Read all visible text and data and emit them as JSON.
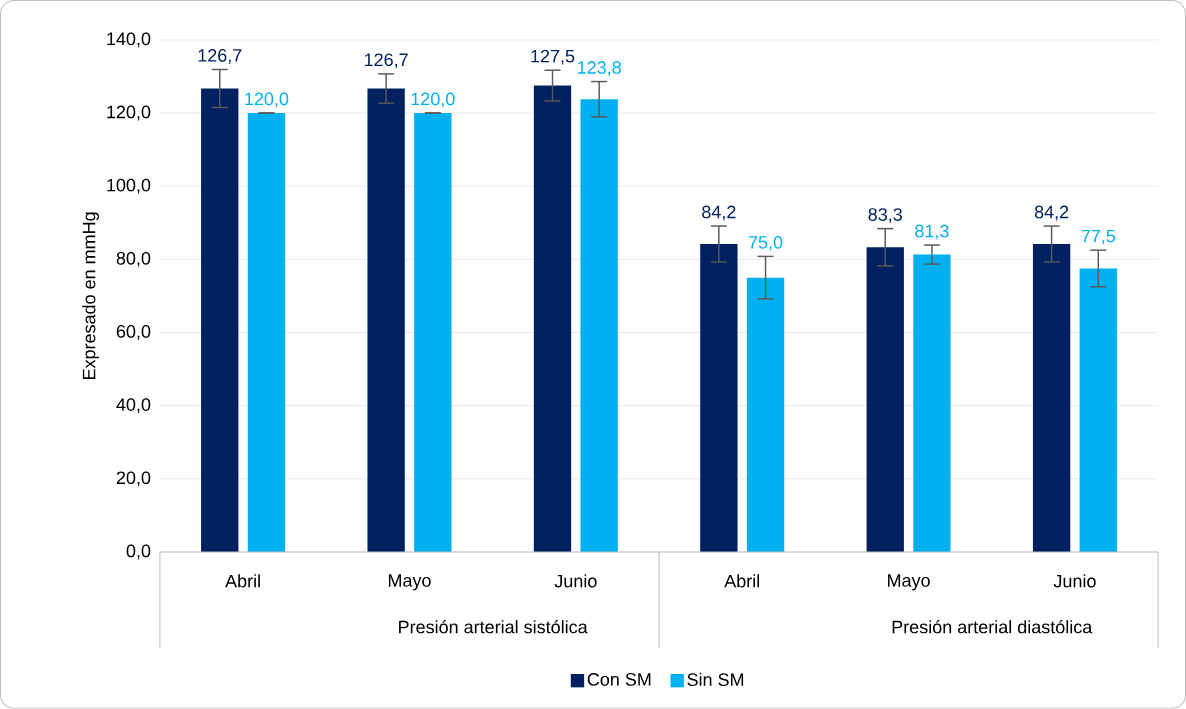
{
  "chart_data": {
    "type": "bar",
    "ylabel": "Expresado en mmHg",
    "categories": [
      "Abril",
      "Mayo",
      "Junio",
      "Abril",
      "Mayo",
      "Junio"
    ],
    "annotations": [
      "Presión arterial sistólica",
      "Presión arterial diastólica"
    ],
    "series": [
      {
        "name": "Con SM",
        "color": "#002060",
        "values": [
          126.7,
          126.7,
          127.5,
          84.2,
          83.3,
          84.2
        ],
        "errors": [
          5.2,
          4.0,
          4.2,
          4.9,
          5.1,
          4.9
        ],
        "value_labels": [
          "126,7",
          "126,7",
          "127,5",
          "84,2",
          "83,3",
          "84,2"
        ]
      },
      {
        "name": "Sin SM",
        "color": "#00b0f0",
        "values": [
          120.0,
          120.0,
          123.8,
          75.0,
          81.3,
          77.5
        ],
        "errors": [
          0,
          0,
          4.8,
          5.8,
          2.6,
          5.0
        ],
        "value_labels": [
          "120,0",
          "120,0",
          "123,8",
          "75,0",
          "81,3",
          "77,5"
        ]
      }
    ],
    "ylim": [
      0,
      140
    ],
    "yticks": [
      {
        "value": 0,
        "label": "0,0"
      },
      {
        "value": 20,
        "label": "20,0"
      },
      {
        "value": 40,
        "label": "40,0"
      },
      {
        "value": 60,
        "label": "60,0"
      },
      {
        "value": 80,
        "label": "80,0"
      },
      {
        "value": 100,
        "label": "100,0"
      },
      {
        "value": 120,
        "label": "120,0"
      },
      {
        "value": 140,
        "label": "140,0"
      }
    ],
    "grid": "y",
    "legend": "bottom"
  }
}
